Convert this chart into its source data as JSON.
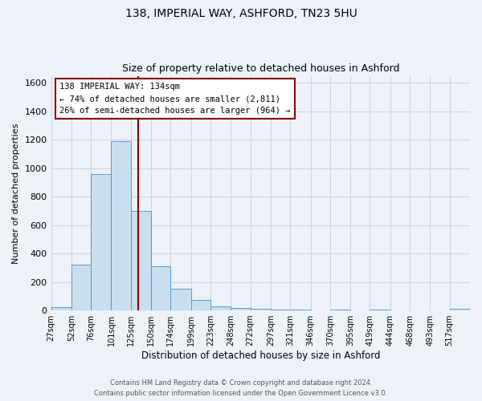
{
  "title_line1": "138, IMPERIAL WAY, ASHFORD, TN23 5HU",
  "title_line2": "Size of property relative to detached houses in Ashford",
  "xlabel": "Distribution of detached houses by size in Ashford",
  "ylabel": "Number of detached properties",
  "bin_labels": [
    "27sqm",
    "52sqm",
    "76sqm",
    "101sqm",
    "125sqm",
    "150sqm",
    "174sqm",
    "199sqm",
    "223sqm",
    "248sqm",
    "272sqm",
    "297sqm",
    "321sqm",
    "346sqm",
    "370sqm",
    "395sqm",
    "419sqm",
    "444sqm",
    "468sqm",
    "493sqm",
    "517sqm"
  ],
  "bin_edges": [
    27,
    52,
    76,
    101,
    125,
    150,
    174,
    199,
    223,
    248,
    272,
    297,
    321,
    346,
    370,
    395,
    419,
    444,
    468,
    493,
    517
  ],
  "bar_heights": [
    25,
    320,
    960,
    1190,
    700,
    310,
    150,
    75,
    30,
    15,
    10,
    5,
    5,
    0,
    5,
    0,
    5,
    0,
    0,
    0,
    10
  ],
  "bar_color": "#c9dff0",
  "bar_edge_color": "#5599cc",
  "vline_x": 134,
  "vline_color": "#8b0000",
  "annotation_line1": "138 IMPERIAL WAY: 134sqm",
  "annotation_line2": "← 74% of detached houses are smaller (2,811)",
  "annotation_line3": "26% of semi-detached houses are larger (964) →",
  "annotation_box_edge_color": "#8b0000",
  "ylim": [
    0,
    1650
  ],
  "yticks": [
    0,
    200,
    400,
    600,
    800,
    1000,
    1200,
    1400,
    1600
  ],
  "grid_color": "#c8d4e8",
  "footer_line1": "Contains HM Land Registry data © Crown copyright and database right 2024.",
  "footer_line2": "Contains public sector information licensed under the Open Government Licence v3.0.",
  "bg_color": "#eef2f8"
}
